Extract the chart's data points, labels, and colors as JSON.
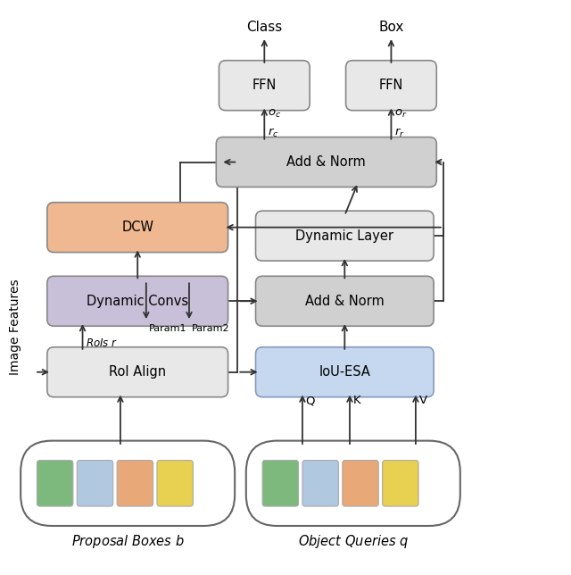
{
  "bg_color": "#ffffff",
  "fig_width": 6.4,
  "fig_height": 6.44,
  "token_colors": [
    "#7db87d",
    "#b0c8e0",
    "#e8a878",
    "#e8d050"
  ],
  "prop_label_text": "Proposal Boxes ",
  "prop_label_italic": "b",
  "query_label_text": "Object Queries ",
  "query_label_italic": "q",
  "image_features_label": "Image Features",
  "class_label": "Class",
  "box_label": "Box",
  "ec_gray": "#888888",
  "ec_blue": "#8899bb",
  "lc": "#333333",
  "lw": 1.3
}
